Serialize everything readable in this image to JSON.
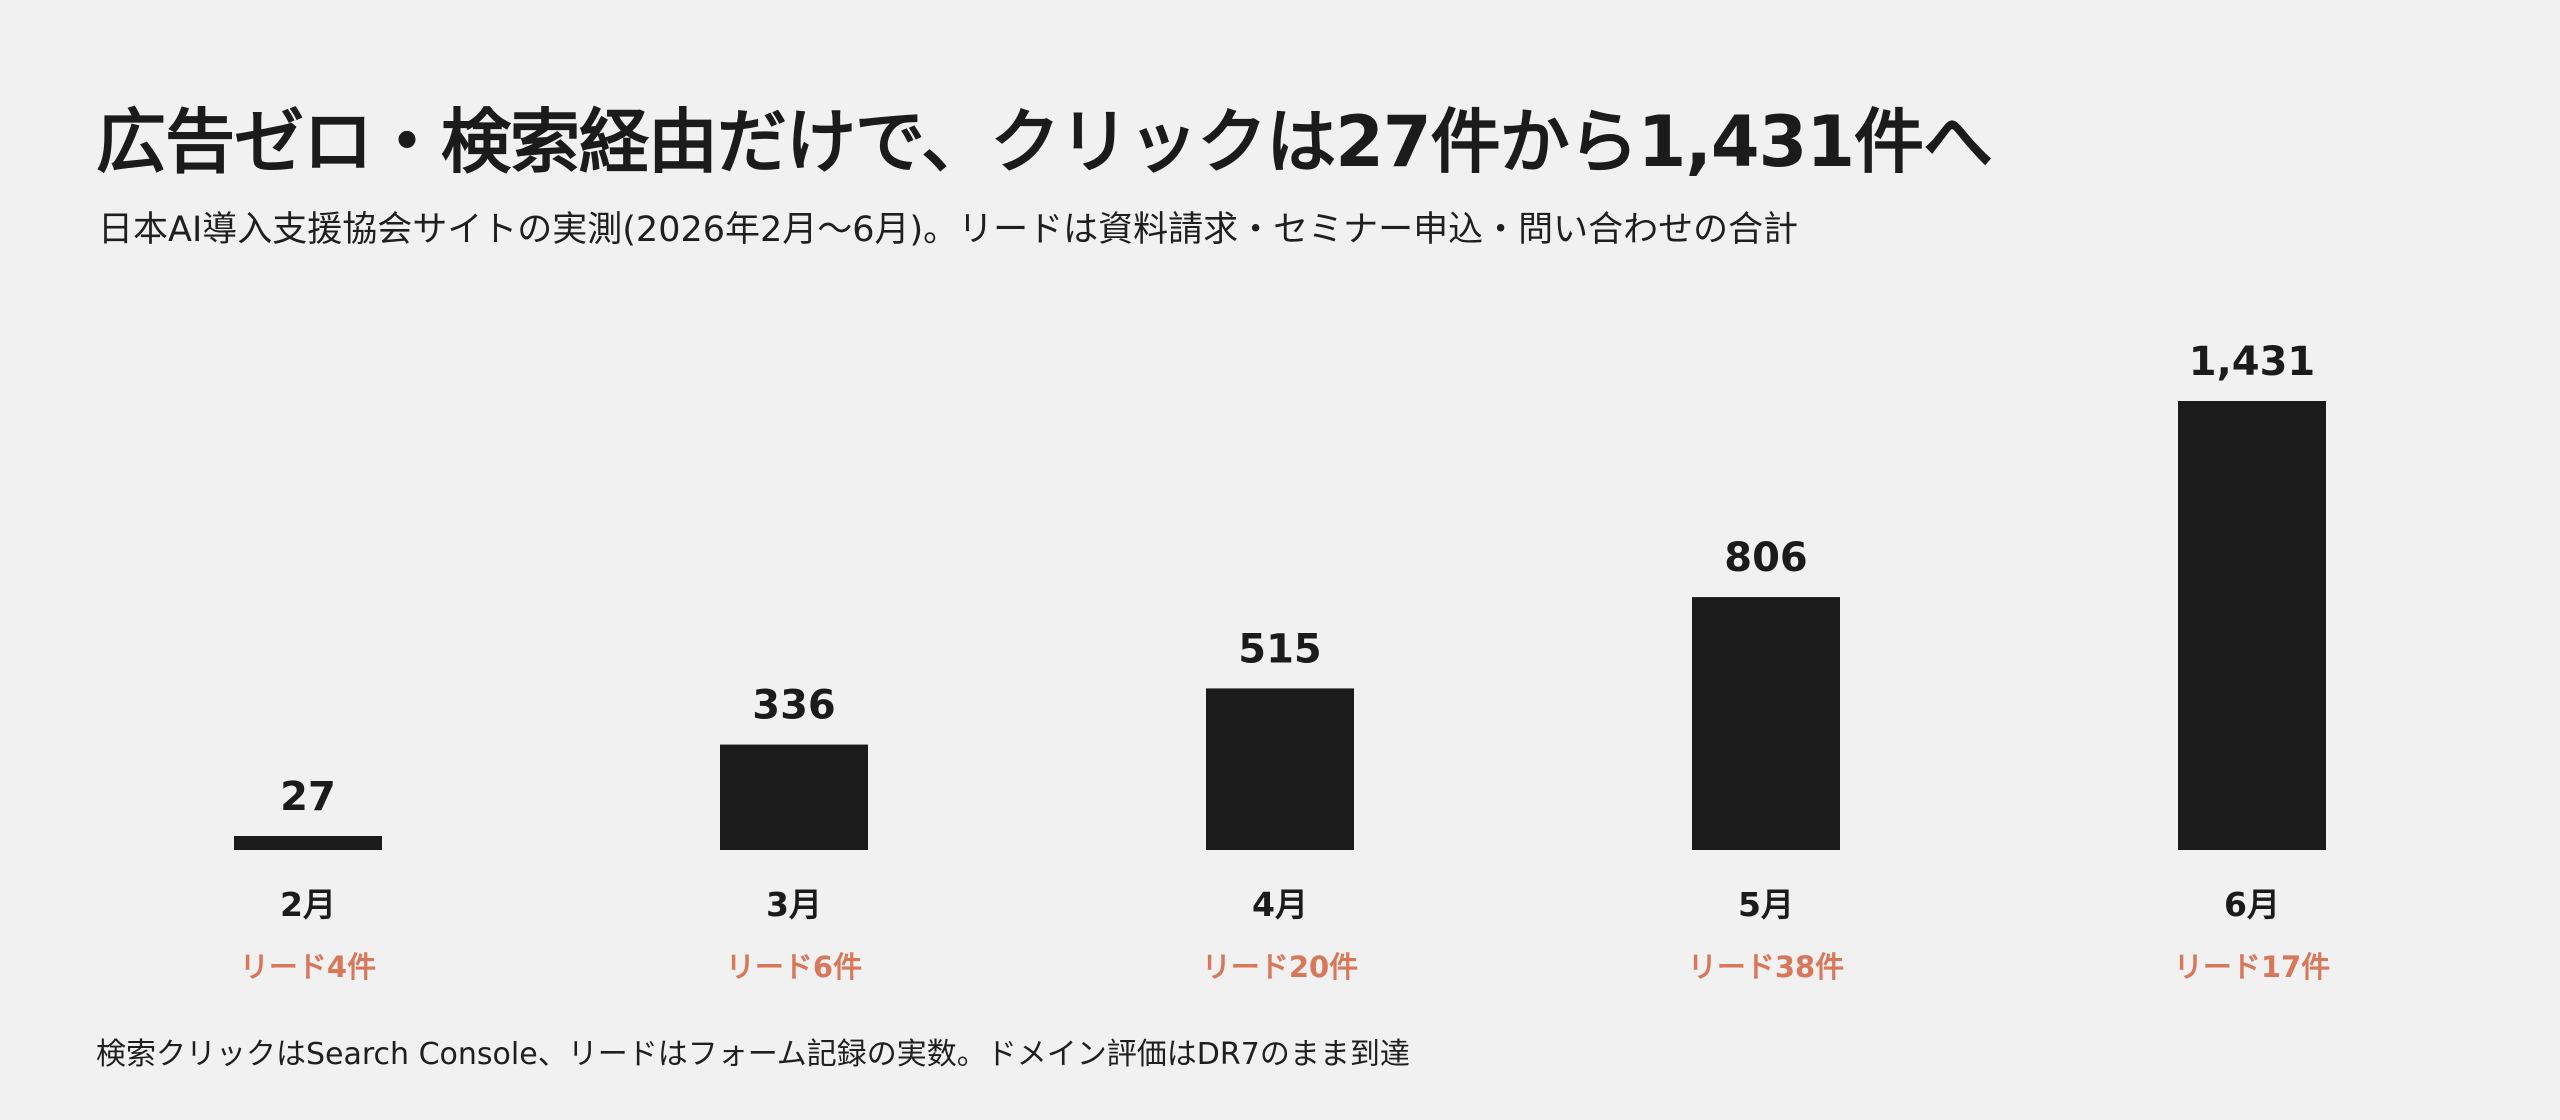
{
  "page": {
    "title": "広告ゼロ・検索経由だけで、クリックは27件から1,431件へ",
    "subtitle": "日本AI導入支援協会サイトの実測(2026年2月〜6月)。リードは資料請求・セミナー申込・問い合わせの合計",
    "footnote": "検索クリックはSearch Console、リードはフォーム記録の実数。ドメイン評価はDR7のまま到達"
  },
  "colors": {
    "background": "#f1f1f1",
    "bar": "#1b1b1b",
    "text": "#1b1b1b",
    "lead_accent": "#d9775b"
  },
  "chart_data": {
    "type": "bar",
    "title": "広告ゼロ・検索経由だけで、クリックは27件から1,431件へ",
    "subtitle": "日本AI導入支援協会サイトの実測(2026年2月〜6月)。リードは資料請求・セミナー申込・問い合わせの合計",
    "categories": [
      "2月",
      "3月",
      "4月",
      "5月",
      "6月"
    ],
    "values": [
      27,
      336,
      515,
      806,
      1431
    ],
    "value_labels": [
      "27",
      "336",
      "515",
      "806",
      "1,431"
    ],
    "annotations": [
      "リード4件",
      "リード6件",
      "リード20件",
      "リード38件",
      "リード17件"
    ],
    "xlabel": "",
    "ylabel": "",
    "grid": false,
    "ylim": [
      0,
      1431
    ]
  }
}
